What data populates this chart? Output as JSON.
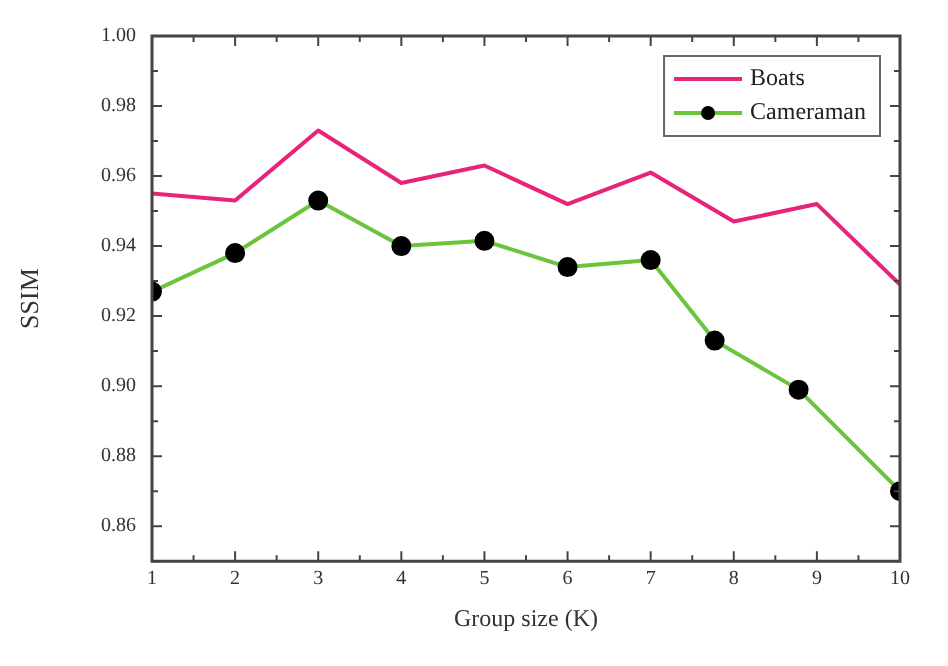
{
  "chart_data": {
    "type": "line",
    "xlabel": "Group size (K)",
    "ylabel": "SSIM",
    "xlim": [
      1,
      10
    ],
    "xticks": [
      1,
      2,
      3,
      4,
      5,
      6,
      7,
      8,
      9,
      10
    ],
    "ylim": [
      0.85,
      1.0
    ],
    "yticks": [
      {
        "value": 0.86,
        "label": "0.86"
      },
      {
        "value": 0.88,
        "label": "0.88"
      },
      {
        "value": 0.9,
        "label": "0.90"
      },
      {
        "value": 0.92,
        "label": "0.92"
      },
      {
        "value": 0.94,
        "label": "0.94"
      },
      {
        "value": 0.96,
        "label": "0.96"
      },
      {
        "value": 0.98,
        "label": "0.98"
      },
      {
        "value": 1.0,
        "label": "1.00"
      }
    ],
    "grid": false,
    "legend": "top right",
    "series": [
      {
        "name": "Boats",
        "color": "#e8237a",
        "marker": "none",
        "x": [
          1,
          2,
          3,
          4,
          5,
          6,
          7,
          8,
          9,
          10
        ],
        "values": [
          0.955,
          0.953,
          0.973,
          0.958,
          0.963,
          0.952,
          0.961,
          0.947,
          0.952,
          0.929
        ]
      },
      {
        "name": "Cameraman",
        "color": "#6cc43c",
        "marker": "circle",
        "x": [
          1,
          2,
          3,
          4,
          5,
          6,
          7,
          7.77,
          8.78,
          10
        ],
        "values": [
          0.927,
          0.938,
          0.953,
          0.94,
          0.9415,
          0.934,
          0.936,
          0.913,
          0.899,
          0.87
        ]
      }
    ]
  }
}
